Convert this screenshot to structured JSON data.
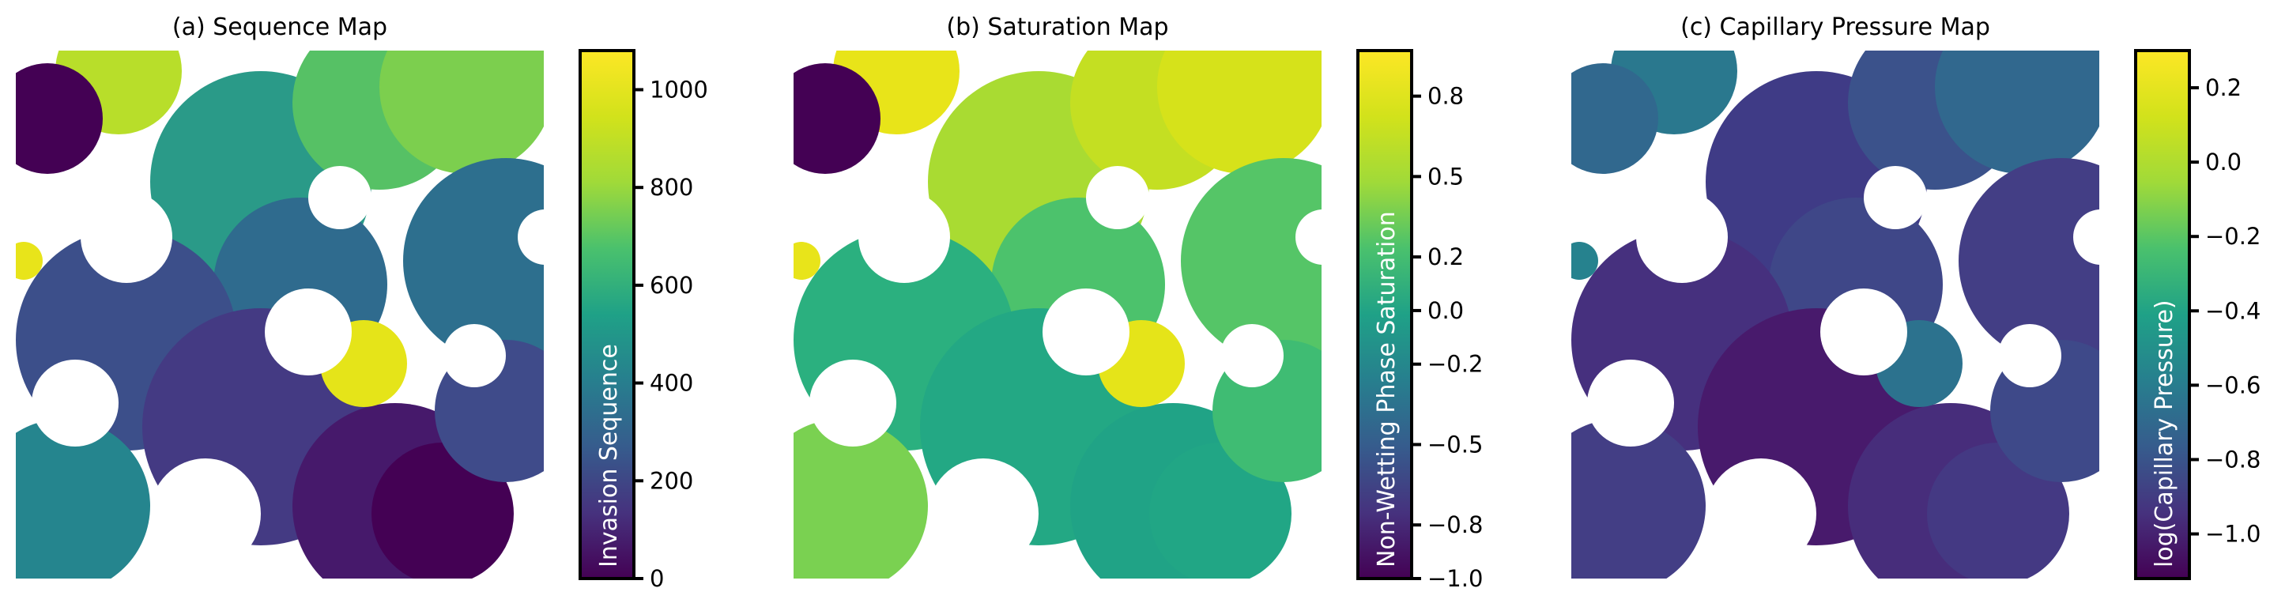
{
  "chart_data": [
    {
      "type": "heatmap",
      "title": "(a) Sequence Map",
      "colorbar": {
        "label": "Invasion Sequence",
        "range": [
          0,
          1080
        ],
        "ticks": [
          0,
          200,
          400,
          600,
          800,
          1000
        ],
        "tick_labels": [
          "0",
          "200",
          "400",
          "600",
          "800",
          "1000"
        ]
      },
      "colormap": "viridis",
      "pore_color": "#ffffff"
    },
    {
      "type": "heatmap",
      "title": "(b) Saturation Map",
      "colorbar": {
        "label": "Non-Wetting Phase Saturation",
        "range": [
          -1.0,
          0.97
        ],
        "ticks": [
          -1.0,
          -0.8,
          -0.5,
          -0.2,
          0.0,
          0.2,
          0.5,
          0.8
        ],
        "tick_labels": [
          "−1.0",
          "−0.8",
          "−0.5",
          "−0.2",
          "0.0",
          "0.2",
          "0.5",
          "0.8"
        ]
      },
      "colormap": "viridis",
      "pore_color": "#ffffff"
    },
    {
      "type": "heatmap",
      "title": "(c) Capillary Pressure Map",
      "colorbar": {
        "label": "log(Capillary Pressure)",
        "range": [
          -1.12,
          0.3
        ],
        "ticks": [
          -1.0,
          -0.8,
          -0.6,
          -0.4,
          -0.2,
          0.0,
          0.2
        ],
        "tick_labels": [
          "−1.0",
          "−0.8",
          "−0.6",
          "−0.4",
          "−0.2",
          "0.0",
          "0.2"
        ]
      },
      "colormap": "viridis",
      "pore_color": "#ffffff"
    }
  ]
}
